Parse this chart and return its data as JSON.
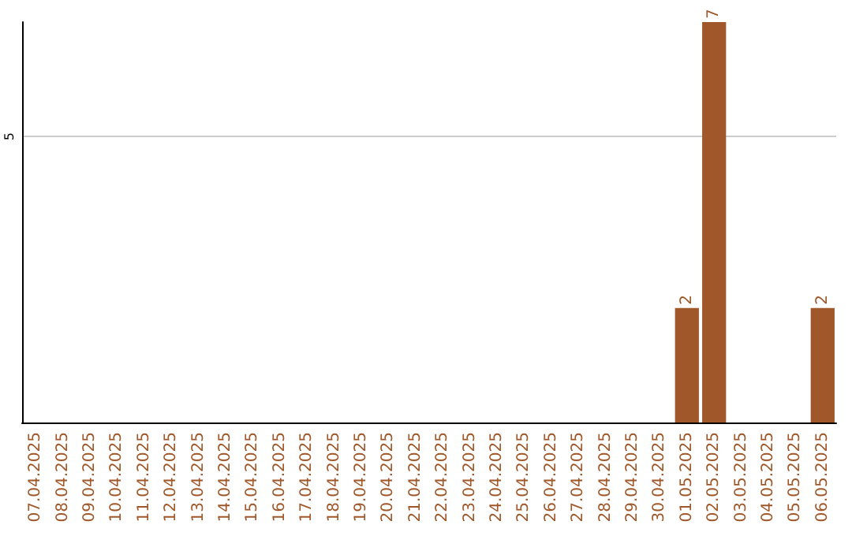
{
  "chart_data": {
    "type": "bar",
    "categories": [
      "07.04.2025",
      "08.04.2025",
      "09.04.2025",
      "10.04.2025",
      "11.04.2025",
      "12.04.2025",
      "13.04.2025",
      "14.04.2025",
      "15.04.2025",
      "16.04.2025",
      "17.04.2025",
      "18.04.2025",
      "19.04.2025",
      "20.04.2025",
      "21.04.2025",
      "22.04.2025",
      "23.04.2025",
      "24.04.2025",
      "25.04.2025",
      "26.04.2025",
      "27.04.2025",
      "28.04.2025",
      "29.04.2025",
      "30.04.2025",
      "01.05.2025",
      "02.05.2025",
      "03.05.2025",
      "04.05.2025",
      "05.05.2025",
      "06.05.2025"
    ],
    "values": [
      null,
      null,
      null,
      null,
      null,
      null,
      null,
      null,
      null,
      null,
      null,
      null,
      null,
      null,
      null,
      null,
      null,
      null,
      null,
      null,
      null,
      null,
      null,
      null,
      2,
      7,
      null,
      null,
      null,
      2
    ],
    "value_labels": [
      null,
      null,
      null,
      null,
      null,
      null,
      null,
      null,
      null,
      null,
      null,
      null,
      null,
      null,
      null,
      null,
      null,
      null,
      null,
      null,
      null,
      null,
      null,
      null,
      "2",
      "7",
      null,
      null,
      null,
      "2"
    ],
    "color": "#a0582a",
    "ylim": [
      0,
      7
    ],
    "yticks": [
      5
    ],
    "grid": "y"
  }
}
